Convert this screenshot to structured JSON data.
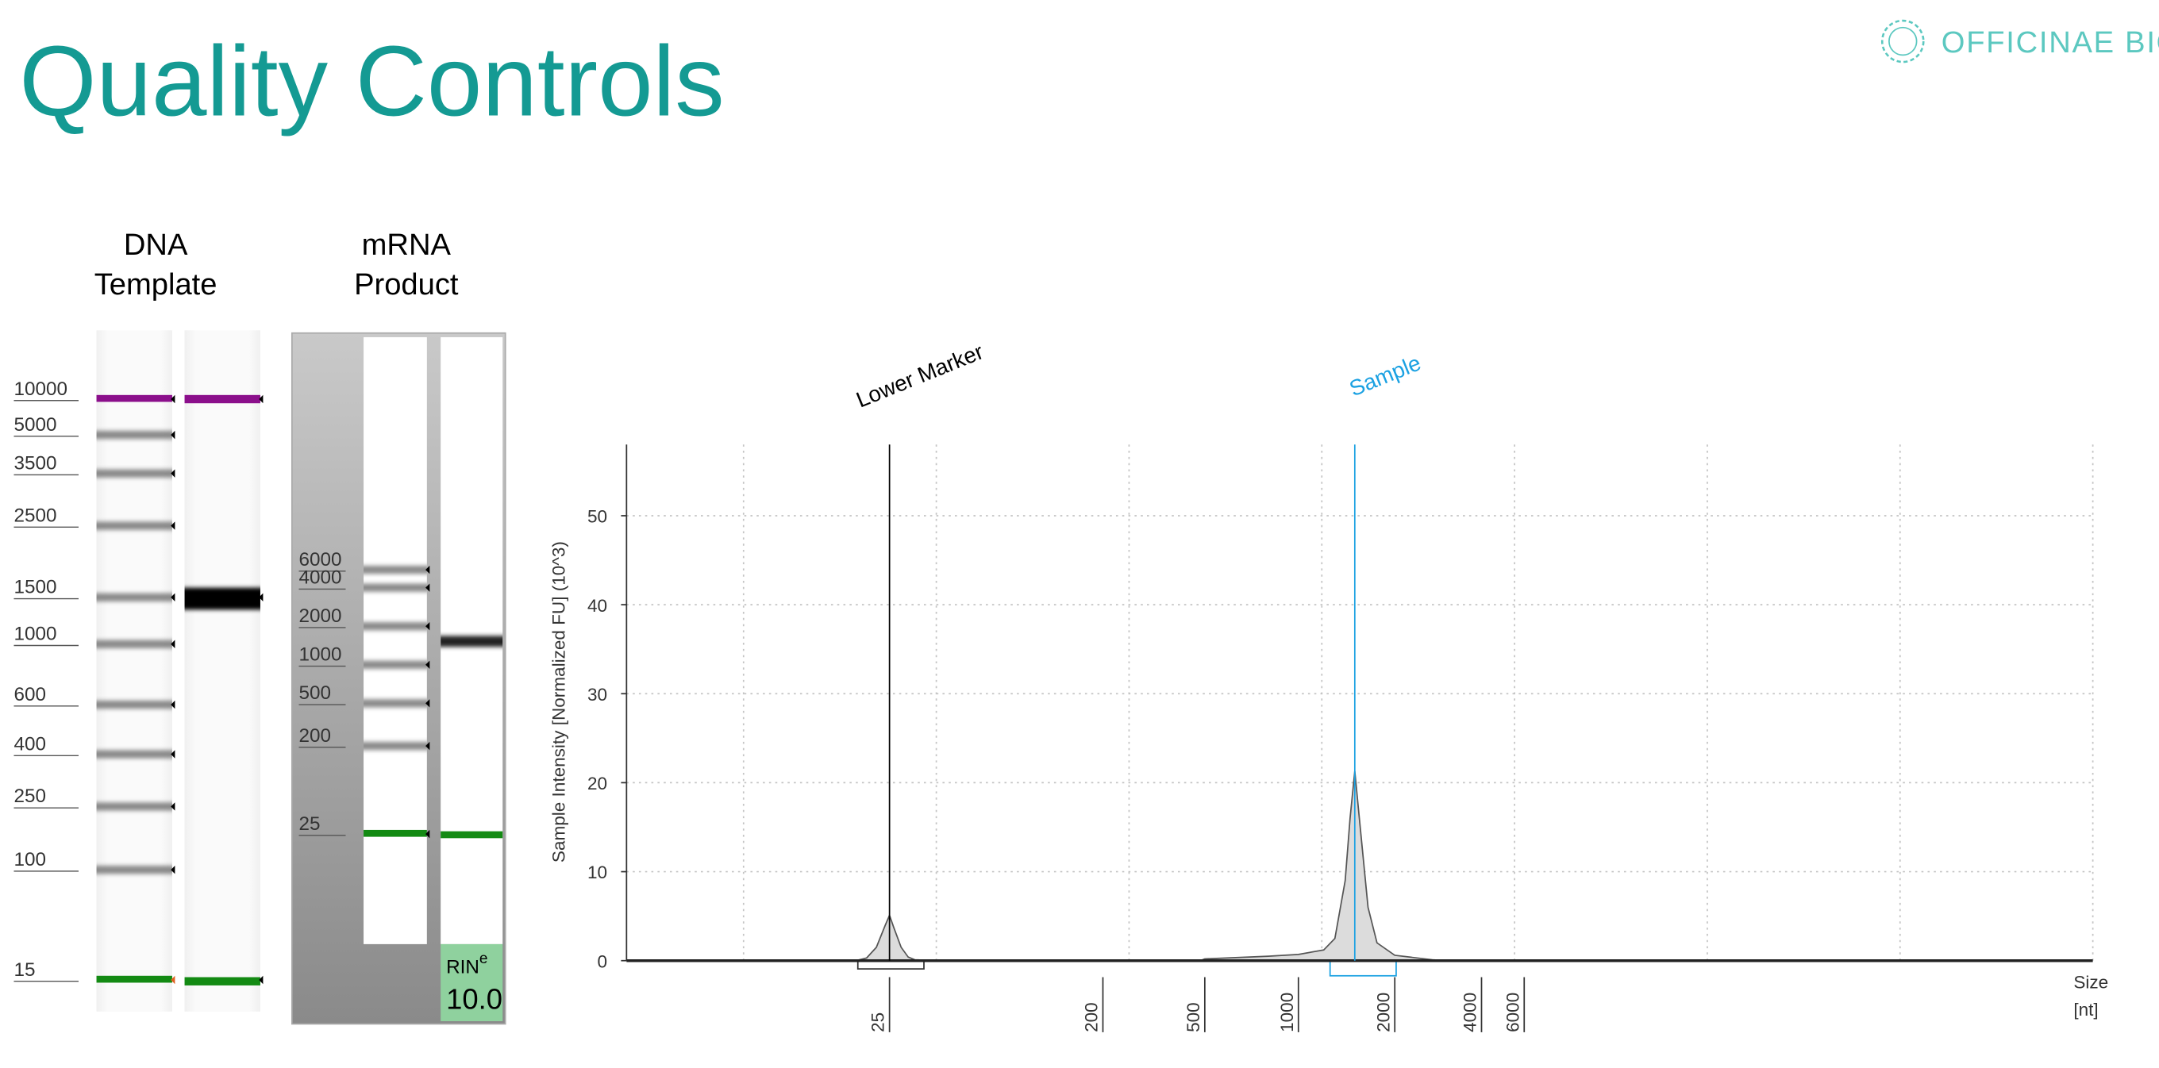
{
  "title": "Quality Controls",
  "logo": "OFFICINAE BIO",
  "gels": [
    {
      "label": [
        "DNA",
        "Template"
      ],
      "ladder": [
        10000,
        5000,
        3500,
        2500,
        1500,
        1000,
        600,
        400,
        250,
        100,
        15
      ]
    },
    {
      "label": [
        "mRNA",
        "Product"
      ],
      "ladder": [
        6000,
        4000,
        2000,
        1000,
        500,
        200,
        25
      ],
      "rin_label": "RIN",
      "rin_superscript": "e",
      "rin": "10.0"
    }
  ],
  "chart_data": {
    "type": "area",
    "ylabel": "Sample Intensity [Normalized FU] (10^3)",
    "xlabel": [
      "Size",
      "[nt]"
    ],
    "x": [
      18,
      20,
      22,
      24,
      25,
      26,
      28,
      30,
      32,
      40,
      480,
      500,
      800,
      1000,
      1200,
      1300,
      1400,
      1450,
      1500,
      1550,
      1650,
      1760,
      2000,
      2700,
      3000
    ],
    "series": [
      {
        "color": "#dcdcdc",
        "values": [
          0,
          0.3,
          1.5,
          4,
          5.1,
          3.8,
          1.5,
          0.4,
          0.1,
          0,
          0,
          0.2,
          0.5,
          0.7,
          1.2,
          2.5,
          9,
          16,
          21.3,
          16,
          6,
          2,
          0.6,
          0.1,
          0
        ]
      }
    ],
    "ylim": [
      0,
      58
    ],
    "yticks": [
      0,
      10,
      20,
      30,
      40,
      50
    ],
    "xticks": [
      25,
      200,
      500,
      1000,
      2000,
      4000,
      6000
    ],
    "xlog": true,
    "grid": true,
    "annotations": [
      {
        "text": "Lower Marker",
        "x": 25,
        "color": "#000000"
      },
      {
        "text": "Sample",
        "x": 1500,
        "color": "#1ba1e2"
      }
    ]
  }
}
